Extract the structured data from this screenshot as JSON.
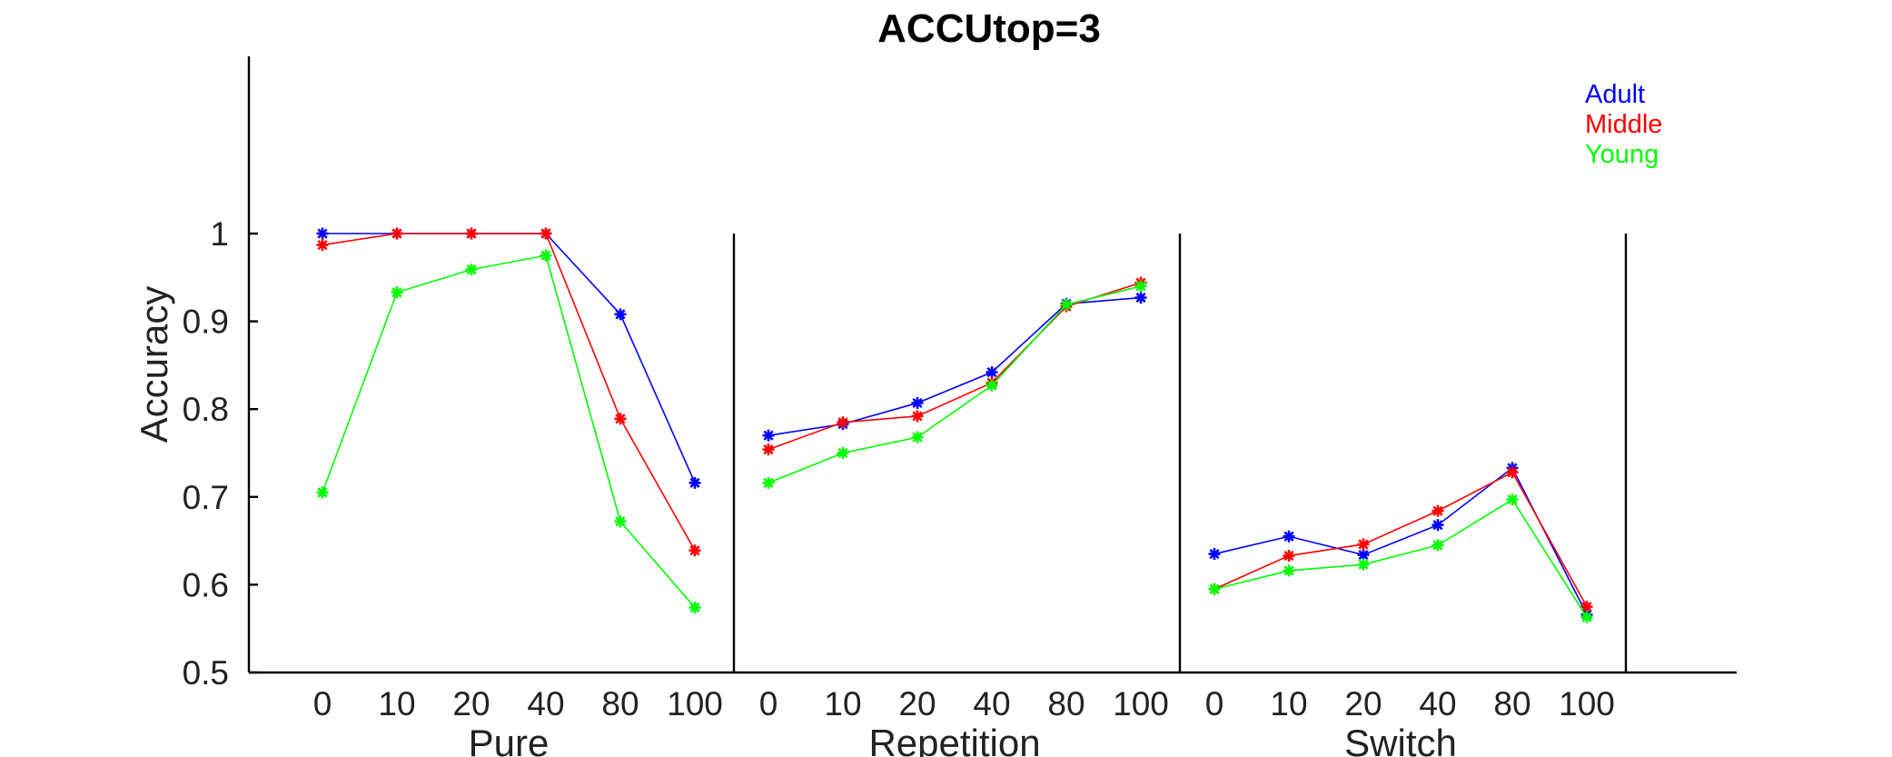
{
  "chart_data": {
    "type": "line",
    "title": "ACCUtop=3",
    "ylabel": "Accuracy",
    "ylim": [
      0.5,
      1.0
    ],
    "yticks": [
      "0.5",
      "0.6",
      "0.7",
      "0.8",
      "0.9",
      "1"
    ],
    "x_categories": [
      "0",
      "10",
      "20",
      "40",
      "80",
      "100"
    ],
    "panels": [
      "Pure",
      "Repetition",
      "Switch"
    ],
    "legend_position": "top-right",
    "series": [
      {
        "name": "Adult",
        "color": "#0000ff",
        "values": [
          [
            1.0,
            1.0,
            1.0,
            1.0,
            0.908,
            0.716
          ],
          [
            0.77,
            0.783,
            0.807,
            0.842,
            0.92,
            0.927
          ],
          [
            0.635,
            0.655,
            0.634,
            0.668,
            0.733,
            0.566
          ]
        ]
      },
      {
        "name": "Middle",
        "color": "#ff0000",
        "values": [
          [
            0.987,
            1.0,
            1.0,
            1.0,
            0.789,
            0.639
          ],
          [
            0.754,
            0.785,
            0.792,
            0.83,
            0.917,
            0.944
          ],
          [
            0.595,
            0.633,
            0.646,
            0.684,
            0.728,
            0.575
          ]
        ]
      },
      {
        "name": "Young",
        "color": "#00ff00",
        "values": [
          [
            0.705,
            0.933,
            0.959,
            0.975,
            0.672,
            0.574
          ],
          [
            0.716,
            0.75,
            0.768,
            0.827,
            0.919,
            0.94
          ],
          [
            0.595,
            0.616,
            0.623,
            0.645,
            0.697,
            0.563
          ]
        ]
      }
    ]
  }
}
